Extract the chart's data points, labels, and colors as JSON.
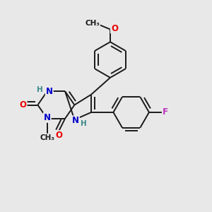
{
  "bg_color": "#e8e8e8",
  "bond_color": "#1a1a1a",
  "bond_width": 1.4,
  "dbo": 0.015,
  "atom_colors": {
    "O": "#ee0000",
    "N": "#0000cc",
    "H": "#3a8a8a",
    "F": "#bb33bb",
    "C": "#1a1a1a"
  },
  "fs": 8.5,
  "fsm": 7.5
}
